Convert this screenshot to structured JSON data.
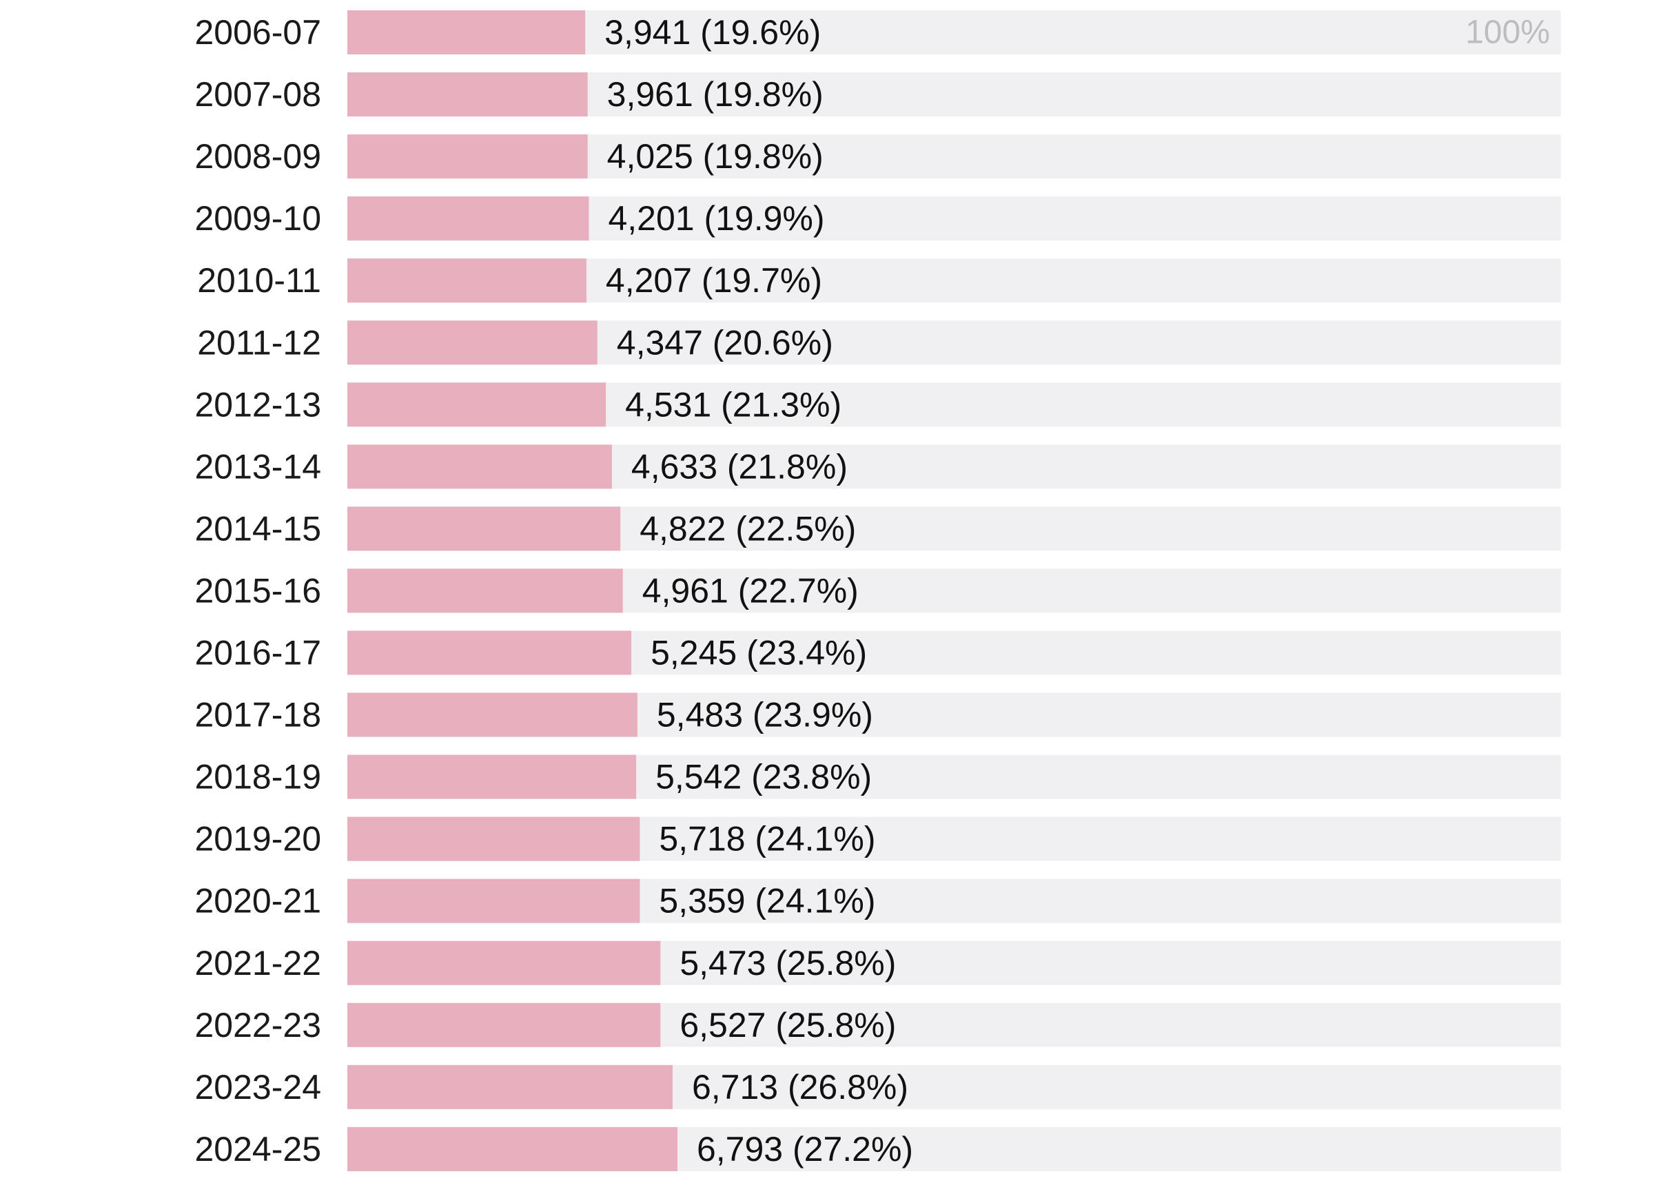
{
  "chart_data": {
    "type": "bar",
    "orientation": "horizontal",
    "xlim": [
      0,
      100
    ],
    "grid": false,
    "max_label": "100%",
    "colors": {
      "bar": "#e8afbe",
      "track": "#f0f0f2",
      "value_text": "#111111",
      "max_text": "#bdbdbd"
    },
    "categories": [
      "2006-07",
      "2007-08",
      "2008-09",
      "2009-10",
      "2010-11",
      "2011-12",
      "2012-13",
      "2013-14",
      "2014-15",
      "2015-16",
      "2016-17",
      "2017-18",
      "2018-19",
      "2019-20",
      "2020-21",
      "2021-22",
      "2022-23",
      "2023-24",
      "2024-25"
    ],
    "series": [
      {
        "values": [
          19.6,
          19.8,
          19.8,
          19.9,
          19.7,
          20.6,
          21.3,
          21.8,
          22.5,
          22.7,
          23.4,
          23.9,
          23.8,
          24.1,
          24.1,
          25.8,
          25.8,
          26.8,
          27.2
        ],
        "labels": [
          "3,941 (19.6%)",
          "3,961 (19.8%)",
          "4,025 (19.8%)",
          "4,201 (19.9%)",
          "4,207 (19.7%)",
          "4,347 (20.6%)",
          "4,531 (21.3%)",
          "4,633 (21.8%)",
          "4,822 (22.5%)",
          "4,961 (22.7%)",
          "5,245 (23.4%)",
          "5,483 (23.9%)",
          "5,542 (23.8%)",
          "5,718 (24.1%)",
          "5,359 (24.1%)",
          "5,473 (25.8%)",
          "6,527 (25.8%)",
          "6,713 (26.8%)",
          "6,793 (27.2%)"
        ]
      }
    ]
  }
}
